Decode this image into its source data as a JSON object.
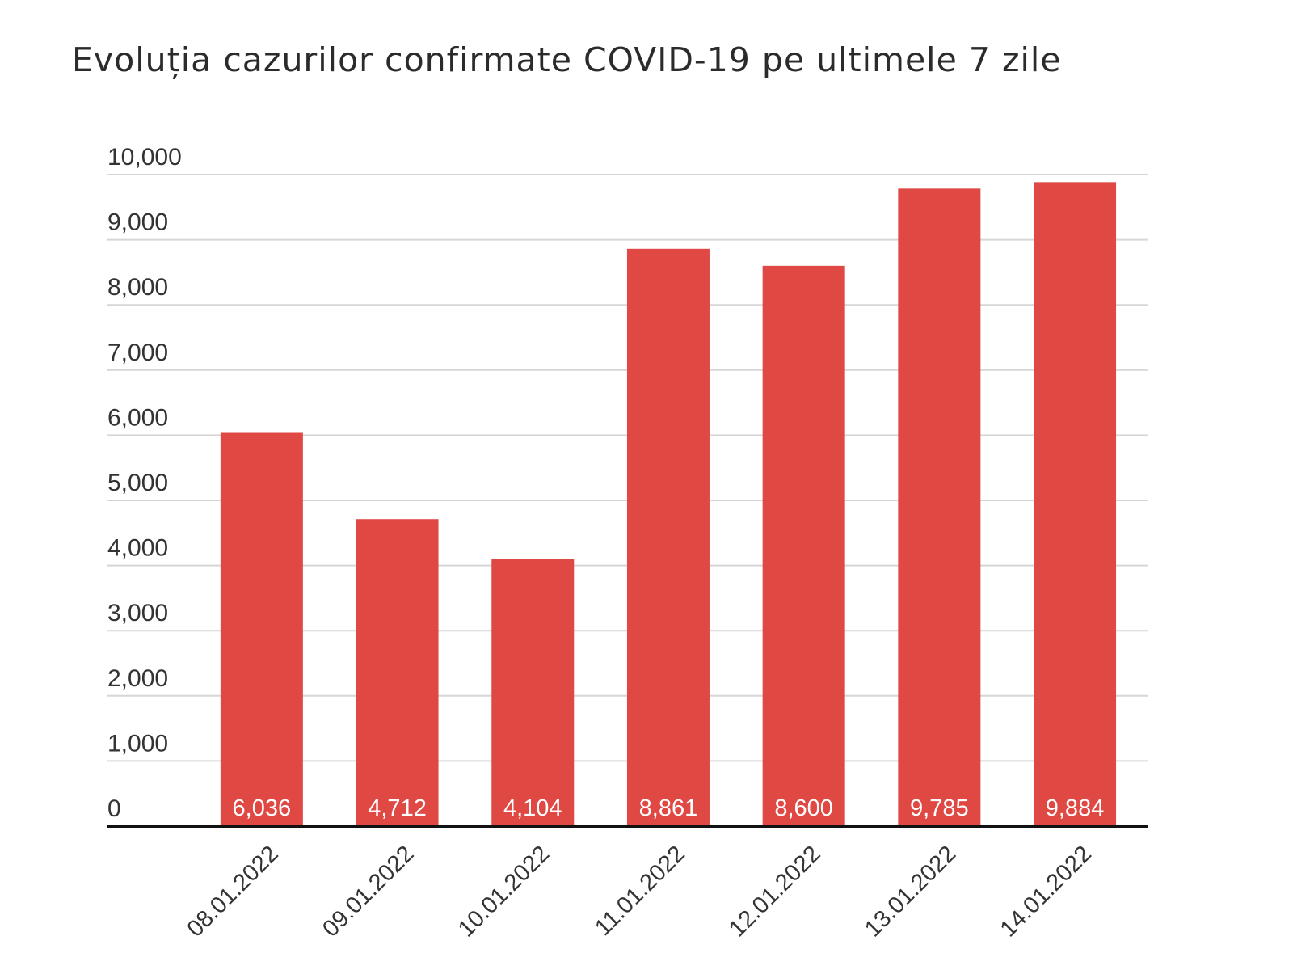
{
  "chart_data": {
    "type": "bar",
    "title": "Evoluția cazurilor confirmate COVID-19 pe ultimele 7 zile",
    "xlabel": "",
    "ylabel": "",
    "categories": [
      "08.01.2022",
      "09.01.2022",
      "10.01.2022",
      "11.01.2022",
      "12.01.2022",
      "13.01.2022",
      "14.01.2022"
    ],
    "values": [
      6036,
      4712,
      4104,
      8861,
      8600,
      9785,
      9884
    ],
    "data_labels": [
      "6,036",
      "4,712",
      "4,104",
      "8,861",
      "8,600",
      "9,785",
      "9,884"
    ],
    "ylim": [
      0,
      10000
    ],
    "yticks": [
      0,
      1000,
      2000,
      3000,
      4000,
      5000,
      6000,
      7000,
      8000,
      9000,
      10000
    ],
    "ytick_labels": [
      "0",
      "1,000",
      "2,000",
      "3,000",
      "4,000",
      "5,000",
      "6,000",
      "7,000",
      "8,000",
      "9,000",
      "10,000"
    ],
    "grid": true,
    "legend": "none",
    "bar_color": "#e04844",
    "label_color": "#ffffff"
  }
}
